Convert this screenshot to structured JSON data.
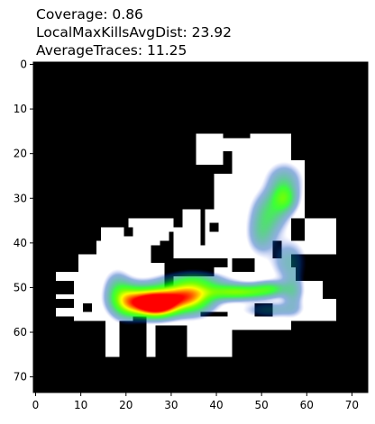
{
  "chart_data": {
    "type": "heatmap",
    "title_lines": [
      "Coverage: 0.86",
      "LocalMaxKillsAvgDist: 23.92",
      "AverageTraces: 11.25"
    ],
    "xlabel": "",
    "ylabel": "",
    "xlim": [
      -0.5,
      73.5
    ],
    "ylim": [
      73.5,
      -0.5
    ],
    "y_axis_inverted": true,
    "x_ticks": [
      0,
      10,
      20,
      30,
      40,
      50,
      60,
      70
    ],
    "y_ticks": [
      0,
      10,
      20,
      30,
      40,
      50,
      60,
      70
    ],
    "grid": false,
    "background_color": "#000000",
    "walkable_color": "#ffffff",
    "colormap": [
      "#0000ff",
      "#00ff00",
      "#ffff00",
      "#ff0000"
    ],
    "walkable_regions": [
      [
        36,
        16,
        42,
        23
      ],
      [
        42,
        17,
        48,
        20
      ],
      [
        48,
        16,
        57,
        23
      ],
      [
        44,
        19,
        50,
        26
      ],
      [
        45,
        22,
        60,
        35
      ],
      [
        40,
        25,
        48,
        33
      ],
      [
        33,
        33,
        37,
        37
      ],
      [
        21,
        35,
        31,
        37
      ],
      [
        15,
        37,
        33,
        38
      ],
      [
        15,
        38,
        30,
        40
      ],
      [
        31,
        37,
        37,
        41
      ],
      [
        31,
        41,
        40,
        44
      ],
      [
        38,
        33,
        57,
        44
      ],
      [
        55,
        40,
        67,
        43
      ],
      [
        60,
        35,
        67,
        40
      ],
      [
        10,
        43,
        29,
        49
      ],
      [
        14,
        40,
        28,
        43
      ],
      [
        5,
        47,
        12,
        49
      ],
      [
        5,
        52,
        12,
        53
      ],
      [
        5,
        55,
        12,
        57
      ],
      [
        9,
        49,
        64,
        58
      ],
      [
        43,
        44,
        57,
        48
      ],
      [
        40,
        46,
        58,
        50
      ],
      [
        57,
        49,
        61,
        58
      ],
      [
        55,
        49,
        63,
        53
      ],
      [
        56,
        53,
        67,
        58
      ],
      [
        43,
        57,
        57,
        60
      ],
      [
        16,
        58,
        36,
        66
      ],
      [
        36,
        57,
        44,
        66
      ],
      [
        13,
        48,
        45,
        57
      ]
    ],
    "obstacle_regions": [
      [
        29,
        48,
        31,
        51
      ],
      [
        32,
        45,
        40,
        48
      ],
      [
        44,
        44,
        49,
        47
      ],
      [
        49,
        54,
        53,
        57
      ],
      [
        37,
        56,
        43,
        57
      ],
      [
        22,
        57,
        25,
        62
      ],
      [
        19,
        58,
        25,
        66
      ],
      [
        27,
        59,
        34,
        66
      ],
      [
        11,
        54,
        13,
        56
      ],
      [
        26,
        41,
        29,
        45
      ],
      [
        53,
        40,
        55,
        44
      ],
      [
        58,
        45,
        61,
        49
      ],
      [
        20,
        37,
        22,
        39
      ],
      [
        39,
        36,
        41,
        38
      ]
    ],
    "heat_sources": [
      {
        "x": 27,
        "y": 54,
        "value": 1.0,
        "sx": 3.0,
        "sy": 1.6
      },
      {
        "x": 24,
        "y": 53,
        "value": 0.7,
        "sx": 3.5,
        "sy": 2.0
      },
      {
        "x": 31,
        "y": 52,
        "value": 0.6,
        "sx": 3.5,
        "sy": 1.8
      },
      {
        "x": 35,
        "y": 52,
        "value": 0.45,
        "sx": 3.0,
        "sy": 2.5
      },
      {
        "x": 20,
        "y": 53,
        "value": 0.35,
        "sx": 2.2,
        "sy": 2.5
      },
      {
        "x": 42,
        "y": 51,
        "value": 0.35,
        "sx": 4.0,
        "sy": 1.2
      },
      {
        "x": 48,
        "y": 51,
        "value": 0.3,
        "sx": 4.0,
        "sy": 1.0
      },
      {
        "x": 52,
        "y": 50,
        "value": 0.22,
        "sx": 2.5,
        "sy": 1.0
      },
      {
        "x": 35,
        "y": 48.5,
        "value": 0.18,
        "sx": 5.0,
        "sy": 1.3
      },
      {
        "x": 18,
        "y": 50,
        "value": 0.16,
        "sx": 1.8,
        "sy": 2.5
      },
      {
        "x": 55,
        "y": 30,
        "value": 0.34,
        "sx": 1.8,
        "sy": 2.0
      },
      {
        "x": 52,
        "y": 33,
        "value": 0.24,
        "sx": 2.5,
        "sy": 3.0
      },
      {
        "x": 55,
        "y": 26,
        "value": 0.18,
        "sx": 2.5,
        "sy": 2.5
      },
      {
        "x": 50,
        "y": 38,
        "value": 0.18,
        "sx": 2.0,
        "sy": 3.0
      },
      {
        "x": 56,
        "y": 44,
        "value": 0.15,
        "sx": 2.5,
        "sy": 3.0
      },
      {
        "x": 57,
        "y": 51,
        "value": 0.15,
        "sx": 1.5,
        "sy": 3.0
      },
      {
        "x": 52,
        "y": 55,
        "value": 0.14,
        "sx": 4.0,
        "sy": 1.2
      }
    ]
  }
}
